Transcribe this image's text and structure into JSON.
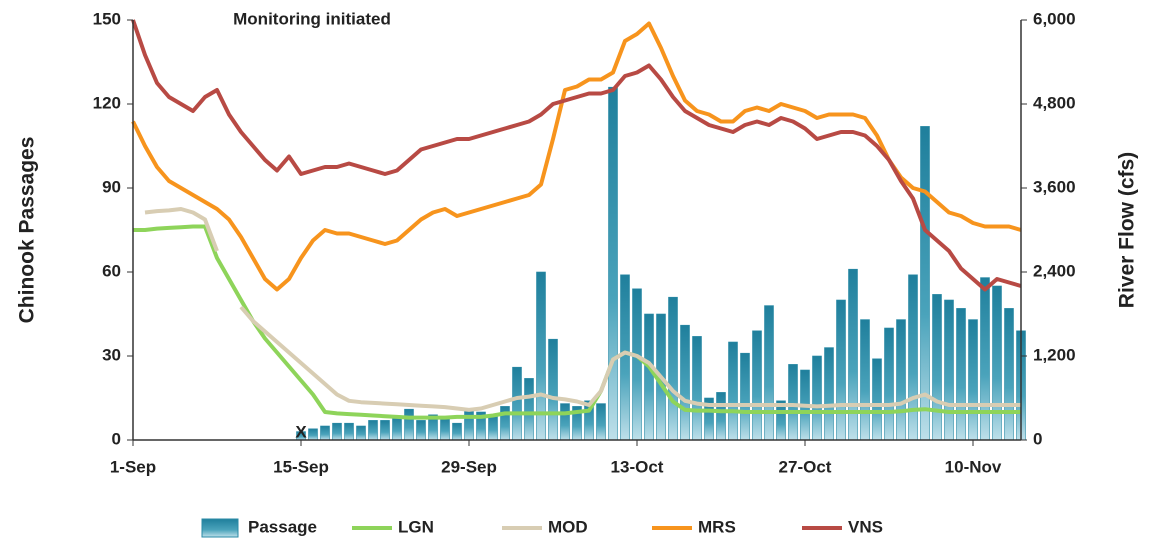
{
  "chart_data": {
    "type": "bar_line",
    "y_label": "Chinook Passages",
    "y2_label": "River Flow (cfs)",
    "annotations": [
      "Monitoring initiated",
      "X"
    ],
    "categories": [
      "1-Sep",
      null,
      null,
      null,
      null,
      null,
      null,
      null,
      null,
      null,
      null,
      null,
      null,
      null,
      "15-Sep",
      null,
      null,
      null,
      null,
      null,
      null,
      null,
      null,
      null,
      null,
      null,
      null,
      null,
      "29-Sep",
      null,
      null,
      null,
      null,
      null,
      null,
      null,
      null,
      null,
      null,
      null,
      null,
      null,
      "13-Oct",
      null,
      null,
      null,
      null,
      null,
      null,
      null,
      null,
      null,
      null,
      null,
      null,
      null,
      "27-Oct",
      null,
      null,
      null,
      null,
      null,
      null,
      null,
      null,
      null,
      null,
      null,
      null,
      null,
      "10-Nov",
      null,
      null,
      null,
      null
    ],
    "ylim": [
      0,
      150
    ],
    "yticks": [
      0,
      30,
      60,
      90,
      120,
      150
    ],
    "y2lim": [
      0,
      6000
    ],
    "y2ticks": [
      0,
      {
        "value": 1200,
        "label": "1,200"
      },
      {
        "value": 2400,
        "label": "2,400"
      },
      {
        "value": 3600,
        "label": "3,600"
      },
      {
        "value": 4800,
        "label": "4,800"
      },
      {
        "value": 6000,
        "label": "6,000"
      }
    ],
    "legend": "bottom",
    "series": [
      {
        "name": "Passage",
        "kind": "bar",
        "color": "#2a8aa6",
        "values": [
          null,
          null,
          null,
          null,
          null,
          null,
          null,
          null,
          null,
          null,
          null,
          null,
          null,
          null,
          3,
          4,
          5,
          6,
          6,
          5,
          7,
          7,
          8,
          11,
          7,
          9,
          8,
          6,
          11,
          10,
          9,
          12,
          26,
          22,
          60,
          36,
          13,
          12,
          14,
          13,
          126,
          59,
          54,
          45,
          45,
          51,
          41,
          37,
          15,
          17,
          35,
          31,
          39,
          48,
          14,
          27,
          25,
          30,
          33,
          50,
          61,
          43,
          29,
          40,
          43,
          59,
          112,
          52,
          50,
          47,
          43,
          58,
          55,
          47,
          39
        ]
      },
      {
        "name": "LGN",
        "kind": "line",
        "axis": "y2",
        "color": "#8ed45a",
        "values": [
          3000,
          3000,
          3020,
          3030,
          3040,
          3050,
          3050,
          2600,
          2300,
          2000,
          1700,
          1450,
          1250,
          1050,
          850,
          650,
          400,
          380,
          370,
          360,
          350,
          340,
          330,
          320,
          320,
          320,
          320,
          330,
          330,
          330,
          350,
          380,
          380,
          380,
          380,
          380,
          380,
          400,
          420,
          700,
          1150,
          1250,
          1200,
          1050,
          800,
          550,
          430,
          420,
          420,
          410,
          410,
          400,
          400,
          400,
          400,
          400,
          400,
          400,
          400,
          400,
          400,
          400,
          400,
          400,
          410,
          430,
          440,
          420,
          400,
          400,
          400,
          400,
          400,
          400,
          400
        ]
      },
      {
        "name": "MOD",
        "kind": "line",
        "axis": "y2",
        "color": "#d8cdb3",
        "values": [
          null,
          3250,
          3270,
          3280,
          3300,
          3250,
          3150,
          2700,
          null,
          1900,
          1700,
          1550,
          1400,
          1250,
          1100,
          950,
          800,
          650,
          560,
          540,
          530,
          520,
          510,
          500,
          490,
          480,
          470,
          450,
          430,
          450,
          500,
          550,
          600,
          620,
          650,
          600,
          580,
          550,
          500,
          700,
          1150,
          1250,
          1200,
          1100,
          900,
          700,
          560,
          520,
          500,
          500,
          500,
          500,
          500,
          500,
          500,
          500,
          490,
          480,
          490,
          500,
          500,
          500,
          500,
          500,
          520,
          600,
          650,
          550,
          500,
          500,
          500,
          500,
          500,
          500,
          500
        ]
      },
      {
        "name": "MRS",
        "kind": "line",
        "axis": "y2",
        "color": "#f7941d",
        "values": [
          4550,
          4200,
          3900,
          3700,
          3600,
          3500,
          3400,
          3300,
          3150,
          2900,
          2600,
          2300,
          2150,
          2300,
          2600,
          2850,
          3000,
          2950,
          2950,
          2900,
          2850,
          2800,
          2850,
          3000,
          3150,
          3250,
          3300,
          3200,
          3250,
          3300,
          3350,
          3400,
          3450,
          3500,
          3650,
          4300,
          5000,
          5050,
          5150,
          5150,
          5250,
          5700,
          5800,
          5950,
          5600,
          5200,
          4850,
          4700,
          4650,
          4550,
          4550,
          4700,
          4750,
          4700,
          4800,
          4750,
          4700,
          4600,
          4650,
          4650,
          4650,
          4600,
          4350,
          4000,
          3750,
          3600,
          3550,
          3400,
          3250,
          3200,
          3100,
          3050,
          3050,
          3050,
          3000
        ]
      },
      {
        "name": "VNS",
        "kind": "line",
        "axis": "y2",
        "color": "#b84a44",
        "values": [
          6000,
          5500,
          5100,
          4900,
          4800,
          4700,
          4900,
          5000,
          4650,
          4400,
          4200,
          4000,
          3850,
          4050,
          3800,
          3850,
          3900,
          3900,
          3950,
          3900,
          3850,
          3800,
          3850,
          4000,
          4150,
          4200,
          4250,
          4300,
          4300,
          4350,
          4400,
          4450,
          4500,
          4550,
          4650,
          4800,
          4850,
          4900,
          4950,
          4950,
          5000,
          5200,
          5250,
          5350,
          5150,
          4900,
          4700,
          4600,
          4500,
          4450,
          4400,
          4500,
          4550,
          4500,
          4600,
          4550,
          4450,
          4300,
          4350,
          4400,
          4400,
          4350,
          4200,
          4000,
          3700,
          3450,
          3000,
          2850,
          2700,
          2450,
          2300,
          2150,
          2300,
          2250,
          2200
        ]
      }
    ]
  }
}
